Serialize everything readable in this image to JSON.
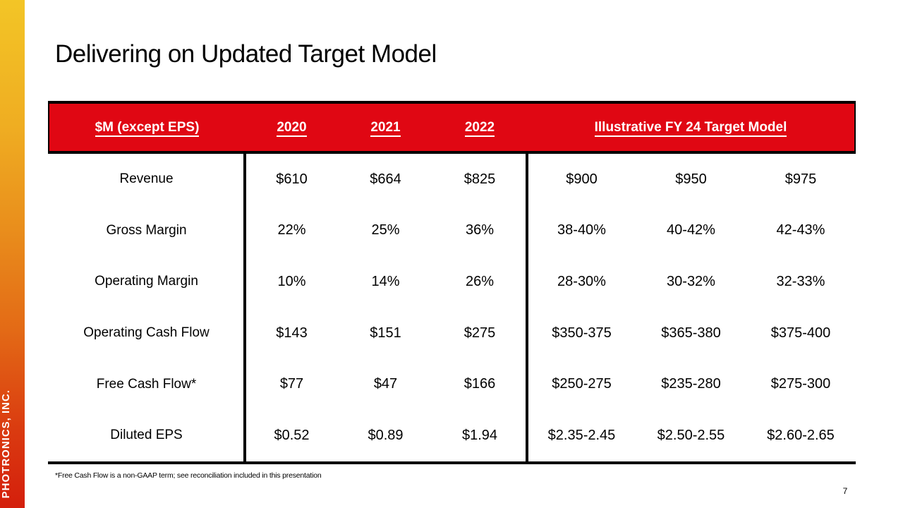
{
  "slide": {
    "title": "Delivering on Updated Target Model",
    "footnote": "*Free Cash Flow is a non-GAAP term; see reconciliation included in this presentation",
    "page_number": "7",
    "brand_text": "PHOTRONICS, INC."
  },
  "colors": {
    "header_red": "#E00713",
    "strip_gradient_top": "#F3C526",
    "strip_gradient_middle": "#E98E1C",
    "strip_gradient_bottom": "#D41F0C",
    "border_black": "#000000",
    "header_text": "#FFFFFF"
  },
  "table": {
    "header": {
      "metric_col": "$M (except EPS)",
      "year_2020": "2020",
      "year_2021": "2021",
      "year_2022": "2022",
      "target_model": "Illustrative FY 24 Target Model"
    },
    "rows": [
      {
        "label": "Revenue",
        "values": [
          "$610",
          "$664",
          "$825",
          "$900",
          "$950",
          "$975"
        ]
      },
      {
        "label": "Gross Margin",
        "values": [
          "22%",
          "25%",
          "36%",
          "38-40%",
          "40-42%",
          "42-43%"
        ]
      },
      {
        "label": "Operating Margin",
        "values": [
          "10%",
          "14%",
          "26%",
          "28-30%",
          "30-32%",
          "32-33%"
        ]
      },
      {
        "label": "Operating Cash Flow",
        "values": [
          "$143",
          "$151",
          "$275",
          "$350-375",
          "$365-380",
          "$375-400"
        ]
      },
      {
        "label": "Free Cash Flow*",
        "values": [
          "$77",
          "$47",
          "$166",
          "$250-275",
          "$235-280",
          "$275-300"
        ]
      },
      {
        "label": "Diluted EPS",
        "values": [
          "$0.52",
          "$0.89",
          "$1.94",
          "$2.35-2.45",
          "$2.50-2.55",
          "$2.60-2.65"
        ]
      }
    ]
  }
}
